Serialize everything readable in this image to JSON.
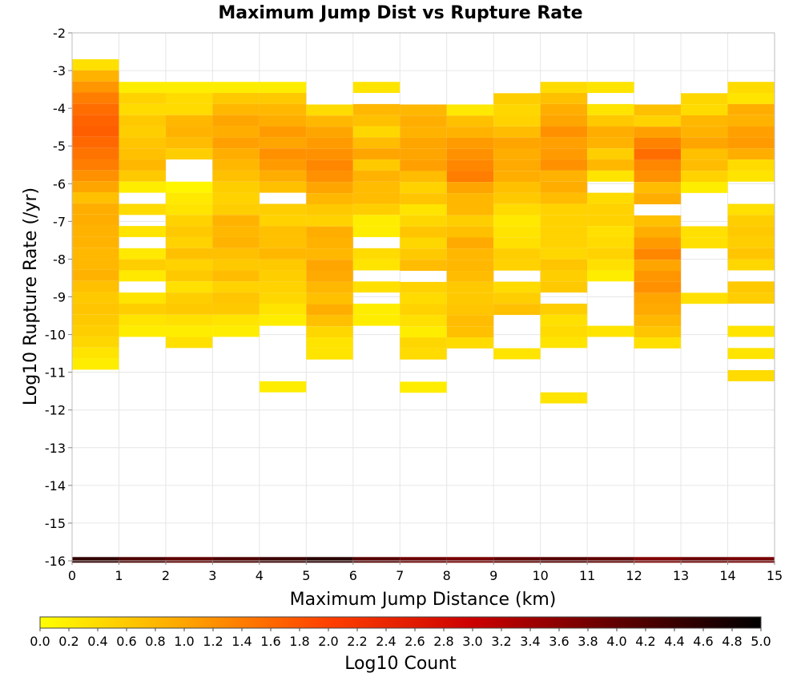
{
  "chart_data": {
    "type": "heatmap",
    "title": "Maximum Jump Dist vs Rupture Rate",
    "xlabel": "Maximum Jump Distance (km)",
    "ylabel": "Log10 Rupture Rate (/yr)",
    "xlim": [
      0,
      15
    ],
    "ylim": [
      -16,
      -2
    ],
    "x_ticks": [
      0,
      1,
      2,
      3,
      4,
      5,
      6,
      7,
      8,
      9,
      10,
      11,
      12,
      13,
      14,
      15
    ],
    "y_ticks": [
      -2,
      -3,
      -4,
      -5,
      -6,
      -7,
      -8,
      -9,
      -10,
      -11,
      -12,
      -13,
      -14,
      -15,
      -16
    ],
    "x_bin_width": 1,
    "y_bin_height": 0.294,
    "grid": true,
    "colorbar": {
      "label": "Log10 Count",
      "range": [
        0,
        5
      ],
      "ticks": [
        "0.0",
        "0.2",
        "0.4",
        "0.6",
        "0.8",
        "1.0",
        "1.2",
        "1.4",
        "1.6",
        "1.8",
        "2.0",
        "2.2",
        "2.4",
        "2.6",
        "2.8",
        "3.0",
        "3.2",
        "3.4",
        "3.6",
        "3.8",
        "4.0",
        "4.2",
        "4.4",
        "4.6",
        "4.8",
        "5.0"
      ],
      "colors": [
        "#ffff00",
        "#ffa500",
        "#ff4000",
        "#cc0000",
        "#600000",
        "#000000"
      ],
      "orientation": "horizontal"
    },
    "columns": [
      {
        "x": 0.5,
        "y_top": -2.7,
        "values": [
          0.35,
          0.85,
          1.15,
          1.4,
          1.55,
          1.65,
          1.7,
          1.6,
          1.5,
          1.4,
          1.2,
          1.0,
          0.7,
          0.9,
          0.9,
          0.85,
          0.85,
          0.8,
          0.8,
          0.85,
          0.7,
          0.6,
          0.65,
          0.6,
          0.55,
          0.45,
          0.3,
          0.2
        ]
      },
      {
        "x": 1.5,
        "y_top": -3.3,
        "values": [
          0.2,
          0.5,
          0.4,
          0.6,
          0.55,
          0.65,
          0.7,
          0.8,
          0.6,
          0.2,
          null,
          0.4,
          null,
          0.3,
          null,
          0.25,
          0.55,
          0.25,
          null,
          0.3,
          0.55,
          0.3,
          0.2,
          null,
          null,
          null,
          null,
          null
        ]
      },
      {
        "x": 2.5,
        "y_top": -3.3,
        "values": [
          0.2,
          0.4,
          0.4,
          0.8,
          0.85,
          0.75,
          0.55,
          null,
          null,
          0.1,
          0.25,
          0.3,
          0.5,
          0.6,
          0.5,
          0.7,
          0.5,
          0.6,
          0.35,
          0.55,
          0.6,
          0.35,
          0.2,
          0.35,
          null,
          null,
          null,
          null
        ]
      },
      {
        "x": 3.5,
        "y_top": -3.3,
        "values": [
          0.2,
          0.6,
          0.8,
          1.0,
          0.9,
          1.05,
          0.9,
          0.8,
          0.7,
          0.55,
          0.5,
          0.55,
          0.85,
          0.8,
          0.85,
          0.7,
          0.6,
          0.75,
          0.5,
          0.65,
          0.6,
          0.3,
          0.2,
          null,
          null,
          null,
          null,
          null
        ]
      },
      {
        "x": 4.5,
        "y_top": -3.3,
        "values": [
          0.2,
          0.6,
          0.8,
          0.9,
          1.1,
          1.0,
          1.2,
          1.1,
          0.9,
          0.7,
          null,
          0.55,
          0.5,
          0.7,
          0.7,
          0.8,
          0.6,
          0.55,
          0.5,
          0.45,
          0.3,
          0.2,
          null,
          null,
          null,
          null,
          null,
          0.2
        ]
      },
      {
        "x": 5.5,
        "y_top": -3.9,
        "values": [
          0.4,
          0.8,
          1.0,
          1.1,
          1.2,
          1.3,
          1.2,
          1.0,
          0.8,
          0.6,
          0.5,
          0.9,
          0.85,
          0.8,
          1.0,
          0.95,
          0.8,
          0.7,
          0.9,
          0.7,
          0.45,
          0.3,
          0.3,
          null,
          null,
          null,
          null,
          null
        ]
      },
      {
        "x": 6.5,
        "y_top": -3.3,
        "values": [
          0.3,
          null,
          0.8,
          0.7,
          0.45,
          0.75,
          1.0,
          0.6,
          0.85,
          0.75,
          0.75,
          0.55,
          0.2,
          0.2,
          null,
          0.4,
          0.3,
          null,
          0.35,
          null,
          0.2,
          0.2,
          null,
          null,
          null,
          null,
          null,
          null
        ]
      },
      {
        "x": 7.5,
        "y_top": -3.9,
        "values": [
          0.8,
          0.9,
          0.85,
          1.0,
          1.0,
          1.05,
          0.75,
          0.5,
          0.65,
          0.3,
          0.45,
          0.65,
          0.45,
          0.6,
          0.75,
          null,
          0.5,
          0.4,
          0.5,
          0.35,
          0.2,
          0.45,
          0.4,
          null,
          null,
          0.2,
          null,
          null
        ]
      },
      {
        "x": 8.5,
        "y_top": -3.9,
        "values": [
          0.25,
          0.7,
          0.85,
          1.1,
          1.2,
          1.3,
          1.4,
          1.0,
          0.8,
          0.8,
          0.55,
          0.7,
          0.95,
          0.8,
          0.8,
          0.75,
          0.6,
          0.6,
          0.65,
          0.75,
          0.7,
          0.4,
          null,
          null,
          null,
          null,
          null,
          null
        ]
      },
      {
        "x": 9.5,
        "y_top": -3.6,
        "values": [
          0.55,
          0.45,
          0.5,
          0.75,
          1.0,
          0.9,
          0.95,
          0.9,
          0.7,
          0.6,
          0.4,
          0.25,
          0.3,
          0.35,
          0.55,
          0.5,
          null,
          0.4,
          0.55,
          0.7,
          null,
          null,
          null,
          0.3,
          null,
          null,
          null,
          null
        ]
      },
      {
        "x": 10.5,
        "y_top": -3.3,
        "values": [
          0.4,
          0.7,
          0.9,
          1.0,
          1.2,
          1.05,
          1.1,
          1.2,
          0.85,
          0.9,
          0.75,
          0.5,
          0.5,
          0.5,
          0.5,
          0.45,
          0.65,
          0.55,
          0.6,
          null,
          0.55,
          0.35,
          0.4,
          0.3,
          null,
          null,
          null,
          null,
          0.3
        ]
      },
      {
        "x": 11.5,
        "y_top": -3.3,
        "values": [
          0.3,
          null,
          0.3,
          0.6,
          0.9,
          0.85,
          0.55,
          0.8,
          0.3,
          null,
          0.4,
          0.5,
          0.5,
          0.35,
          0.4,
          0.5,
          0.35,
          0.2,
          null,
          null,
          null,
          null,
          0.3,
          null,
          null,
          null,
          null,
          null
        ]
      },
      {
        "x": 12.5,
        "y_top": -3.9,
        "values": [
          0.7,
          0.5,
          1.05,
          1.35,
          1.55,
          1.3,
          1.2,
          0.75,
          0.9,
          null,
          0.7,
          0.9,
          1.1,
          1.3,
          1.0,
          1.15,
          1.2,
          1.0,
          0.95,
          0.8,
          0.65,
          0.35,
          null,
          null,
          null,
          null,
          null,
          null
        ]
      },
      {
        "x": 13.5,
        "y_top": -3.6,
        "values": [
          0.45,
          0.4,
          0.8,
          0.85,
          1.0,
          0.7,
          0.75,
          0.5,
          0.2,
          null,
          null,
          null,
          0.35,
          0.35,
          null,
          null,
          null,
          null,
          0.35,
          null,
          null,
          null,
          null,
          null,
          null,
          null,
          null,
          null
        ]
      },
      {
        "x": 14.5,
        "y_top": -3.3,
        "values": [
          0.4,
          0.3,
          0.9,
          0.85,
          1.05,
          1.1,
          0.9,
          0.4,
          0.3,
          null,
          null,
          0.35,
          0.55,
          0.6,
          0.55,
          0.65,
          0.45,
          null,
          0.6,
          0.55,
          null,
          null,
          0.3,
          null,
          0.3,
          null,
          0.4,
          null
        ]
      }
    ],
    "bottom_row": {
      "y_center": -16,
      "values": [
        4.5,
        4.2,
        4.0,
        4.2,
        4.4,
        4.6,
        4.1,
        3.9,
        3.8,
        4.0,
        4.1,
        4.0,
        3.7,
        3.9,
        3.8
      ]
    }
  }
}
